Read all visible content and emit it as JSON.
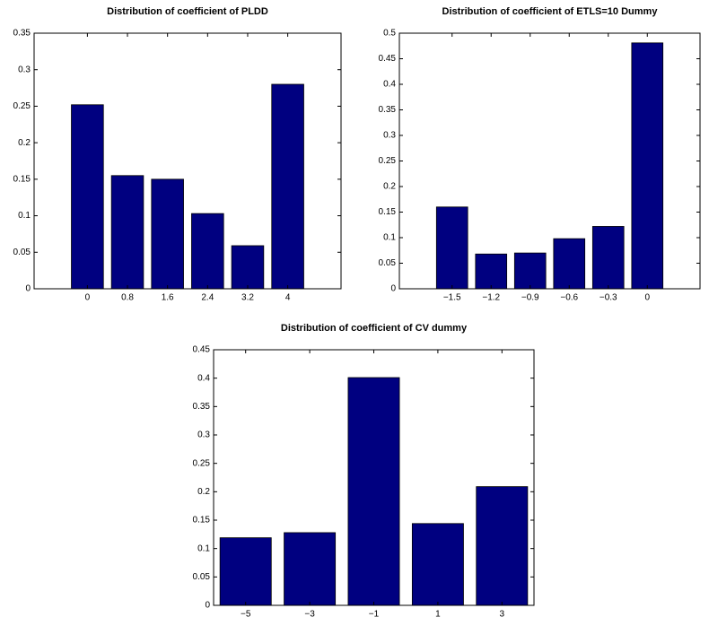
{
  "chart_data": [
    {
      "type": "bar",
      "title": "Distribution of coefficient of PLDD",
      "categories": [
        "0",
        "0.8",
        "1.6",
        "2.4",
        "3.2",
        "4"
      ],
      "values": [
        0.252,
        0.155,
        0.15,
        0.103,
        0.059,
        0.28
      ],
      "color": "#000080",
      "ylim": [
        0,
        0.35
      ],
      "yticks": [
        0,
        0.05,
        0.1,
        0.15,
        0.2,
        0.25,
        0.3,
        0.35
      ]
    },
    {
      "type": "bar",
      "title": "Distribution of coefficient of ETLS=10 Dummy",
      "categories": [
        "−1.5",
        "−1.2",
        "−0.9",
        "−0.6",
        "−0.3",
        "0"
      ],
      "values": [
        0.16,
        0.068,
        0.07,
        0.098,
        0.122,
        0.481
      ],
      "color": "#000080",
      "ylim": [
        0,
        0.5
      ],
      "yticks": [
        0,
        0.05,
        0.1,
        0.15,
        0.2,
        0.25,
        0.3,
        0.35,
        0.4,
        0.45,
        0.5
      ]
    },
    {
      "type": "bar",
      "title": "Distribution of coefficient of CV dummy",
      "categories": [
        "−5",
        "−3",
        "−1",
        "1",
        "3"
      ],
      "values": [
        0.119,
        0.128,
        0.401,
        0.144,
        0.209
      ],
      "color": "#000080",
      "ylim": [
        0,
        0.45
      ],
      "yticks": [
        0,
        0.05,
        0.1,
        0.15,
        0.2,
        0.25,
        0.3,
        0.35,
        0.4,
        0.45
      ]
    }
  ]
}
